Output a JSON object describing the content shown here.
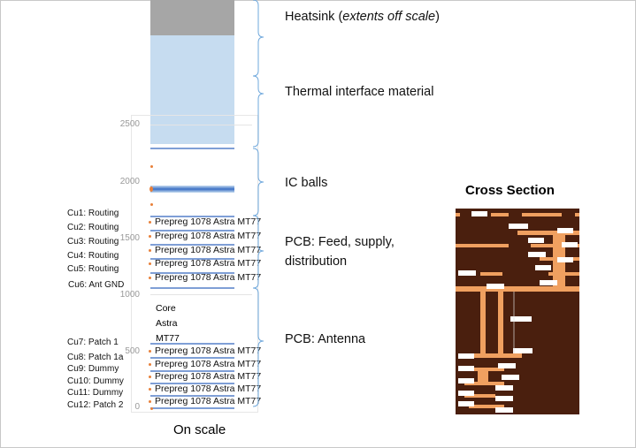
{
  "left_labels": [
    "Cu1: Routing",
    "Cu2: Routing",
    "Cu3: Routing",
    "Cu4: Routing",
    "Cu5: Routing",
    "Cu6: Ant GND",
    "Cu7: Patch 1",
    "Cu8: Patch 1a",
    "Cu9: Dummy",
    "Cu10: Dummy",
    "Cu11: Dummy",
    "Cu12: Patch 2"
  ],
  "y_ticks": [
    "2500",
    "2000",
    "1500",
    "1000",
    "500",
    "0"
  ],
  "prepreg_label": "Prepreg 1078 Astra MT77",
  "core_label": [
    "Core",
    "Astra",
    "MT77"
  ],
  "caption": "On scale",
  "right_labels": {
    "heatsink": "Heatsink (",
    "heatsink_italic": "extents off scale",
    "heatsink_close": ")",
    "tim": "Thermal interface material",
    "ic_balls": "IC balls",
    "pcb_feed_1": "PCB: Feed, supply,",
    "pcb_feed_2": "distribution",
    "pcb_antenna": "PCB: Antenna"
  },
  "cross_section_title": "Cross Section",
  "colors": {
    "heatsink": "#a6a6a6",
    "tim": "#c6dcf0",
    "layer_line": "#7f9fd6",
    "dot": "#e8803a",
    "brace": "#6fa8dc",
    "photo_bg": "#4a1f0e",
    "copper": "#f0a060"
  }
}
